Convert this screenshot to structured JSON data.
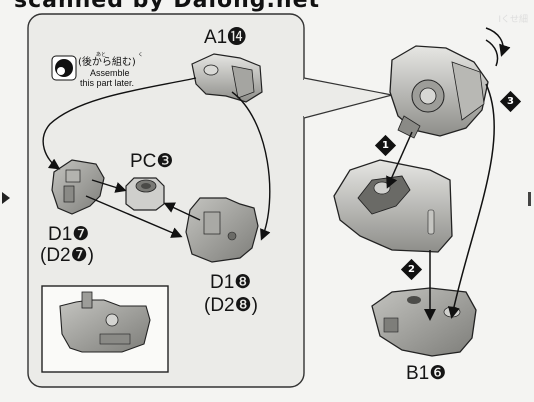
{
  "watermark": "scanned by Dalong.net",
  "note": {
    "jp_furigana_left": "あと",
    "jp_furigana_right": "く",
    "jp": "(後から組む)",
    "en_line1": "Assemble",
    "en_line2": "this part later."
  },
  "parts": {
    "a1": "A1⓮",
    "pc": "PC❸",
    "d1": "D1❼",
    "d2": "(D2❼)",
    "d18": "D1❽",
    "d28": "(D2❽)",
    "b1": "B1❻"
  },
  "steps": [
    "1",
    "2",
    "3"
  ],
  "corner_label": "Iくせ細",
  "colors": {
    "ink": "#111111",
    "paper": "#f4f4f2",
    "part_fill": "#9a9a96",
    "part_light": "#c9c9c5",
    "callout_fill": "#ebebe8"
  }
}
